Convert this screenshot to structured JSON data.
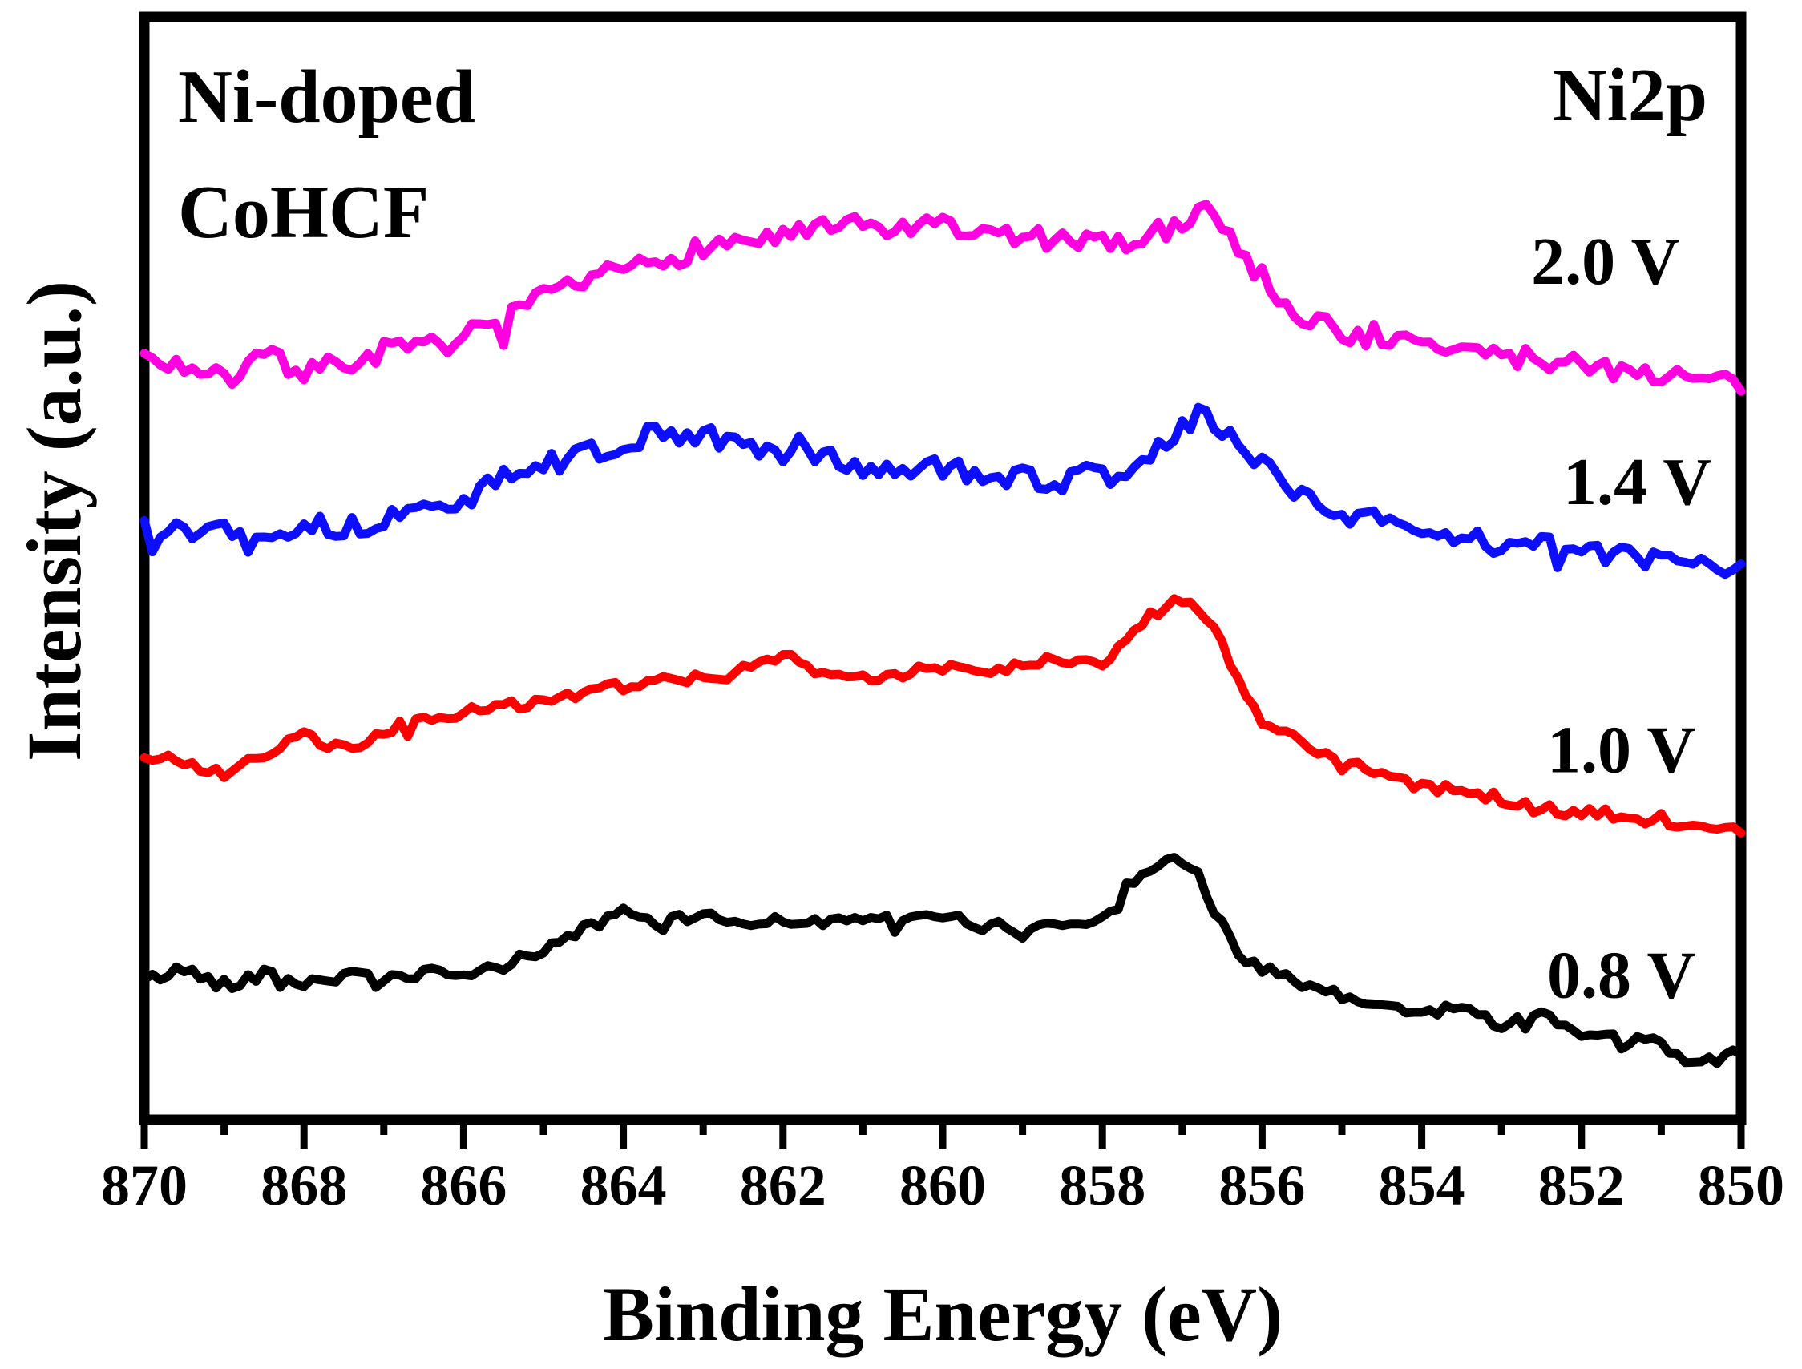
{
  "chart_data": {
    "type": "line",
    "title": "",
    "xlabel": "Binding Energy (eV)",
    "ylabel": "Intensity (a.u.)",
    "annotations": {
      "material_line1": "Ni-doped",
      "material_line2": "CoHCF",
      "corner": "Ni2p"
    },
    "x_axis": {
      "min": 850,
      "max": 870,
      "reversed": true,
      "major_ticks": [
        870,
        868,
        866,
        864,
        862,
        860,
        858,
        856,
        854,
        852,
        850
      ],
      "minor_ticks": [
        869,
        867,
        865,
        863,
        861,
        859,
        857,
        855,
        853,
        851
      ]
    },
    "y_axis": {
      "min": 0,
      "max": 1,
      "units": "a.u.",
      "ticks_visible": false
    },
    "frame_color": "#000000",
    "series": [
      {
        "name": "2.0 V",
        "label": "2.0 V",
        "color": "#FF00E0",
        "label_pos": {
          "x_ev": 851.7,
          "y": 0.779
        },
        "noise_amp": 0.01,
        "noise_seed": 7,
        "peak_ev": 856.7,
        "points": [
          [
            870,
            0.686
          ],
          [
            869.5,
            0.683
          ],
          [
            869,
            0.668
          ],
          [
            868.5,
            0.69
          ],
          [
            868,
            0.679
          ],
          [
            867.5,
            0.683
          ],
          [
            867,
            0.696
          ],
          [
            866.5,
            0.697
          ],
          [
            866,
            0.708
          ],
          [
            865.5,
            0.723
          ],
          [
            865,
            0.743
          ],
          [
            864.5,
            0.756
          ],
          [
            864,
            0.77
          ],
          [
            863.5,
            0.778
          ],
          [
            863,
            0.791
          ],
          [
            862.5,
            0.796
          ],
          [
            862,
            0.8
          ],
          [
            861.5,
            0.806
          ],
          [
            861,
            0.809
          ],
          [
            860.5,
            0.806
          ],
          [
            860,
            0.809
          ],
          [
            859.5,
            0.802
          ],
          [
            859,
            0.8
          ],
          [
            858.5,
            0.795
          ],
          [
            858,
            0.793
          ],
          [
            857.5,
            0.798
          ],
          [
            857.2,
            0.806
          ],
          [
            857,
            0.811
          ],
          [
            856.8,
            0.828
          ],
          [
            856.7,
            0.836
          ],
          [
            856.5,
            0.811
          ],
          [
            856.3,
            0.789
          ],
          [
            856,
            0.762
          ],
          [
            855.5,
            0.727
          ],
          [
            855,
            0.713
          ],
          [
            854.5,
            0.706
          ],
          [
            854,
            0.701
          ],
          [
            853.5,
            0.696
          ],
          [
            853,
            0.691
          ],
          [
            852.5,
            0.688
          ],
          [
            852,
            0.684
          ],
          [
            851.5,
            0.679
          ],
          [
            851,
            0.675
          ],
          [
            850.5,
            0.669
          ],
          [
            850,
            0.666
          ]
        ]
      },
      {
        "name": "1.4 V",
        "label": "1.4 V",
        "color": "#0E0EFF",
        "label_pos": {
          "x_ev": 851.3,
          "y": 0.578
        },
        "noise_amp": 0.01,
        "noise_seed": 13,
        "peak_ev": 856.8,
        "points": [
          [
            870,
            0.54
          ],
          [
            869.5,
            0.53
          ],
          [
            869,
            0.536
          ],
          [
            868.5,
            0.529
          ],
          [
            868,
            0.54
          ],
          [
            867.5,
            0.532
          ],
          [
            867,
            0.543
          ],
          [
            866.5,
            0.552
          ],
          [
            866,
            0.559
          ],
          [
            865.5,
            0.58
          ],
          [
            865,
            0.591
          ],
          [
            864.5,
            0.602
          ],
          [
            864,
            0.613
          ],
          [
            863.5,
            0.62
          ],
          [
            863,
            0.618
          ],
          [
            862.5,
            0.609
          ],
          [
            862,
            0.602
          ],
          [
            861.5,
            0.598
          ],
          [
            861,
            0.591
          ],
          [
            860.5,
            0.587
          ],
          [
            860,
            0.591
          ],
          [
            859.5,
            0.584
          ],
          [
            859,
            0.58
          ],
          [
            858.5,
            0.576
          ],
          [
            858,
            0.581
          ],
          [
            857.5,
            0.591
          ],
          [
            857.2,
            0.613
          ],
          [
            857,
            0.63
          ],
          [
            856.8,
            0.637
          ],
          [
            856.6,
            0.628
          ],
          [
            856.4,
            0.617
          ],
          [
            856.2,
            0.606
          ],
          [
            856,
            0.595
          ],
          [
            855.5,
            0.565
          ],
          [
            855,
            0.543
          ],
          [
            854.5,
            0.54
          ],
          [
            854,
            0.532
          ],
          [
            853.5,
            0.529
          ],
          [
            853,
            0.521
          ],
          [
            852.5,
            0.518
          ],
          [
            852,
            0.514
          ],
          [
            851.5,
            0.508
          ],
          [
            851,
            0.507
          ],
          [
            850.5,
            0.499
          ],
          [
            850,
            0.496
          ]
        ]
      },
      {
        "name": "1.0 V",
        "label": "1.0 V",
        "color": "#FF0000",
        "label_pos": {
          "x_ev": 851.5,
          "y": 0.334
        },
        "noise_amp": 0.0055,
        "noise_seed": 21,
        "peak_ev": 857.1,
        "points": [
          [
            870,
            0.326
          ],
          [
            869.5,
            0.322
          ],
          [
            869,
            0.31
          ],
          [
            868.5,
            0.327
          ],
          [
            868,
            0.345
          ],
          [
            867.5,
            0.334
          ],
          [
            867,
            0.349
          ],
          [
            866.5,
            0.36
          ],
          [
            866,
            0.366
          ],
          [
            865.5,
            0.373
          ],
          [
            865,
            0.378
          ],
          [
            864.5,
            0.386
          ],
          [
            864,
            0.391
          ],
          [
            863.5,
            0.4
          ],
          [
            863,
            0.397
          ],
          [
            862.5,
            0.402
          ],
          [
            862,
            0.419
          ],
          [
            861.5,
            0.4
          ],
          [
            861,
            0.398
          ],
          [
            860.5,
            0.402
          ],
          [
            860,
            0.408
          ],
          [
            859.5,
            0.404
          ],
          [
            859,
            0.408
          ],
          [
            858.5,
            0.417
          ],
          [
            858,
            0.413
          ],
          [
            857.7,
            0.433
          ],
          [
            857.5,
            0.448
          ],
          [
            857.3,
            0.459
          ],
          [
            857.1,
            0.468
          ],
          [
            856.9,
            0.464
          ],
          [
            856.7,
            0.452
          ],
          [
            856.5,
            0.426
          ],
          [
            856.2,
            0.382
          ],
          [
            856,
            0.364
          ],
          [
            855.7,
            0.349
          ],
          [
            855.5,
            0.338
          ],
          [
            855,
            0.323
          ],
          [
            854.5,
            0.312
          ],
          [
            854,
            0.298
          ],
          [
            853.5,
            0.298
          ],
          [
            853,
            0.287
          ],
          [
            852.5,
            0.279
          ],
          [
            852,
            0.276
          ],
          [
            851.5,
            0.272
          ],
          [
            851,
            0.265
          ],
          [
            850.5,
            0.261
          ],
          [
            850,
            0.257
          ]
        ]
      },
      {
        "name": "0.8 V",
        "label": "0.8 V",
        "color": "#000000",
        "label_pos": {
          "x_ev": 851.5,
          "y": 0.129
        },
        "noise_amp": 0.0055,
        "noise_seed": 42,
        "peak_ev": 857.2,
        "points": [
          [
            870,
            0.122
          ],
          [
            869.5,
            0.133
          ],
          [
            869,
            0.118
          ],
          [
            868.5,
            0.129
          ],
          [
            868,
            0.12
          ],
          [
            867.5,
            0.127
          ],
          [
            867,
            0.122
          ],
          [
            866.5,
            0.129
          ],
          [
            866,
            0.125
          ],
          [
            865.5,
            0.136
          ],
          [
            865,
            0.151
          ],
          [
            864.5,
            0.169
          ],
          [
            864,
            0.184
          ],
          [
            863.5,
            0.173
          ],
          [
            863,
            0.184
          ],
          [
            862.5,
            0.173
          ],
          [
            862,
            0.18
          ],
          [
            861.5,
            0.173
          ],
          [
            861,
            0.18
          ],
          [
            860.5,
            0.177
          ],
          [
            860,
            0.18
          ],
          [
            859.5,
            0.173
          ],
          [
            859,
            0.169
          ],
          [
            858.5,
            0.173
          ],
          [
            858,
            0.18
          ],
          [
            857.7,
            0.199
          ],
          [
            857.5,
            0.224
          ],
          [
            857.2,
            0.232
          ],
          [
            857,
            0.227
          ],
          [
            856.8,
            0.221
          ],
          [
            856.6,
            0.188
          ],
          [
            856.4,
            0.162
          ],
          [
            856.2,
            0.14
          ],
          [
            856,
            0.133
          ],
          [
            855.5,
            0.118
          ],
          [
            855,
            0.107
          ],
          [
            854.5,
            0.1
          ],
          [
            854,
            0.092
          ],
          [
            853.5,
            0.098
          ],
          [
            853,
            0.083
          ],
          [
            852.5,
            0.09
          ],
          [
            852,
            0.074
          ],
          [
            851.5,
            0.068
          ],
          [
            851,
            0.063
          ],
          [
            850.5,
            0.045
          ],
          [
            850,
            0.059
          ]
        ]
      }
    ]
  }
}
